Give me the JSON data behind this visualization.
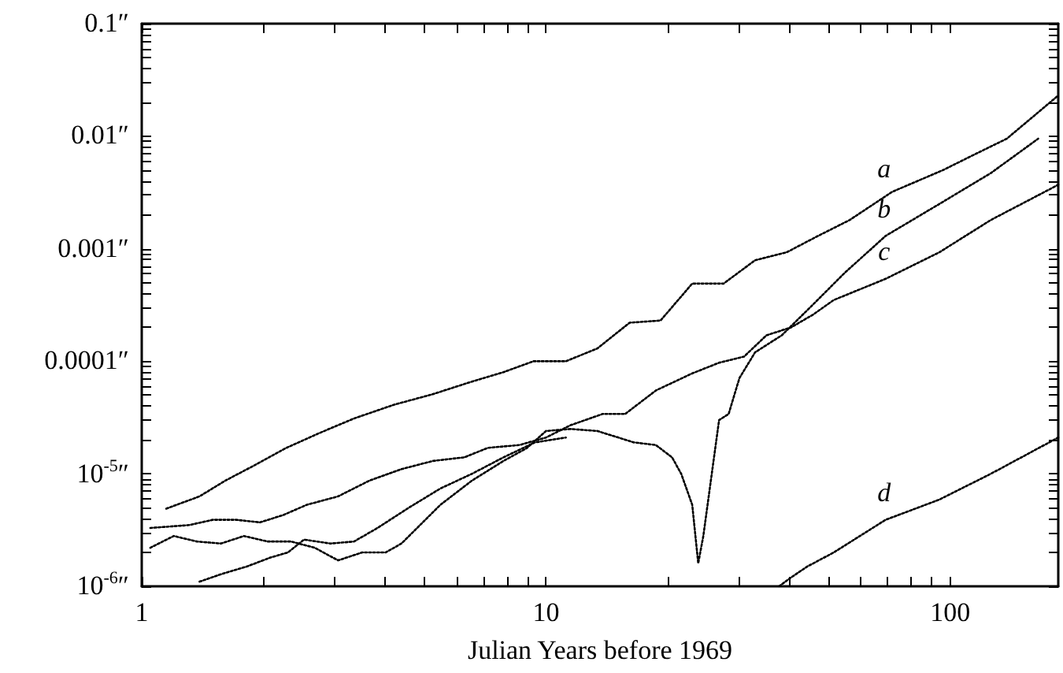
{
  "chart_data": {
    "type": "line",
    "xlabel": "Julian Years before 1969",
    "log": "xy",
    "grid": false,
    "marker": "none",
    "line_style": "dotted",
    "xlim": [
      1,
      185
    ],
    "xticks": [
      1,
      {
        "value": 2,
        "label": null
      },
      {
        "value": 3,
        "label": null
      },
      {
        "value": 4,
        "label": null
      },
      {
        "value": 5,
        "label": null
      },
      {
        "value": 6,
        "label": null
      },
      {
        "value": 7,
        "label": null
      },
      {
        "value": 8,
        "label": null
      },
      {
        "value": 9,
        "label": null
      },
      10,
      {
        "value": 20,
        "label": null
      },
      {
        "value": 30,
        "label": null
      },
      {
        "value": 40,
        "label": null
      },
      {
        "value": 50,
        "label": null
      },
      {
        "value": 60,
        "label": null
      },
      {
        "value": 70,
        "label": null
      },
      {
        "value": 80,
        "label": null
      },
      {
        "value": 90,
        "label": null
      },
      100
    ],
    "ylim": [
      1e-06,
      0.1
    ],
    "yticks": [
      {
        "value": 1e-06,
        "label": "10$^{-6}$″"
      },
      {
        "value": 2e-06,
        "label": null
      },
      {
        "value": 3e-06,
        "label": null
      },
      {
        "value": 4e-06,
        "label": null
      },
      {
        "value": 5e-06,
        "label": null
      },
      {
        "value": 6e-06,
        "label": null
      },
      {
        "value": 7e-06,
        "label": null
      },
      {
        "value": 8e-06,
        "label": null
      },
      {
        "value": 9e-06,
        "label": null
      },
      {
        "value": 1e-05,
        "label": "10$^{-5}$″"
      },
      {
        "value": 2e-05,
        "label": null
      },
      {
        "value": 3e-05,
        "label": null
      },
      {
        "value": 4e-05,
        "label": null
      },
      {
        "value": 5e-05,
        "label": null
      },
      {
        "value": 6e-05,
        "label": null
      },
      {
        "value": 7e-05,
        "label": null
      },
      {
        "value": 8e-05,
        "label": null
      },
      {
        "value": 9e-05,
        "label": null
      },
      {
        "value": 0.0001,
        "label": "0.0001″"
      },
      {
        "value": 0.0002,
        "label": null
      },
      {
        "value": 0.0003,
        "label": null
      },
      {
        "value": 0.0004,
        "label": null
      },
      {
        "value": 0.0005,
        "label": null
      },
      {
        "value": 0.0006,
        "label": null
      },
      {
        "value": 0.0007,
        "label": null
      },
      {
        "value": 0.0008,
        "label": null
      },
      {
        "value": 0.0009,
        "label": null
      },
      {
        "value": 0.001,
        "label": "0.001″"
      },
      {
        "value": 0.002,
        "label": null
      },
      {
        "value": 0.003,
        "label": null
      },
      {
        "value": 0.004,
        "label": null
      },
      {
        "value": 0.005,
        "label": null
      },
      {
        "value": 0.006,
        "label": null
      },
      {
        "value": 0.007,
        "label": null
      },
      {
        "value": 0.008,
        "label": null
      },
      {
        "value": 0.009,
        "label": null
      },
      {
        "value": 0.01,
        "label": "0.01″"
      },
      {
        "value": 0.02,
        "label": null
      },
      {
        "value": 0.03,
        "label": null
      },
      {
        "value": 0.04,
        "label": null
      },
      {
        "value": 0.05,
        "label": null
      },
      {
        "value": 0.06,
        "label": null
      },
      {
        "value": 0.07,
        "label": null
      },
      {
        "value": 0.08,
        "label": null
      },
      {
        "value": 0.09,
        "label": null
      },
      {
        "value": 0.1,
        "label": "0.1″"
      }
    ],
    "series": [
      {
        "name": "a",
        "color": "#000000",
        "x": [
          1.15,
          1.39,
          1.61,
          1.91,
          2.28,
          2.75,
          3.35,
          4.2,
          5.25,
          6.56,
          7.85,
          9.31,
          11.2,
          13.4,
          16.1,
          19.2,
          23,
          27.5,
          32.9,
          39.4,
          47.1,
          56.4,
          71.8,
          96,
          115,
          138,
          185
        ],
        "values": [
          4.9e-06,
          6.3e-06,
          8.7e-06,
          1.2e-05,
          1.7e-05,
          2.3e-05,
          3.1e-05,
          4.1e-05,
          5.1e-05,
          6.6e-05,
          8e-05,
          0.0001,
          0.0001,
          0.00013,
          0.00022,
          0.00023,
          0.00049,
          0.00049,
          0.00079,
          0.00093,
          0.0013,
          0.0018,
          0.0032,
          0.005,
          0.0069,
          0.0095,
          0.023
        ]
      },
      {
        "name": "b",
        "color": "#000000",
        "x": [
          1.05,
          1.2,
          1.37,
          1.57,
          1.79,
          2.05,
          2.34,
          2.68,
          3.06,
          3.51,
          4.01,
          4.39,
          4.8,
          5.48,
          6.56,
          7.85,
          8.98,
          10,
          11.5,
          13.4,
          16.5,
          18.7,
          20.5,
          21.6,
          23,
          23.8,
          24.5,
          25.2,
          26.8,
          28.3,
          30.1,
          32.9,
          38.3,
          45.8,
          54.8,
          69.2,
          94,
          126,
          165
        ],
        "values": [
          2.2e-06,
          2.8e-06,
          2.5e-06,
          2.4e-06,
          2.8e-06,
          2.5e-06,
          2.5e-06,
          2.2e-06,
          1.7e-06,
          2e-06,
          2e-06,
          2.4e-06,
          3.3e-06,
          5.3e-06,
          8.7e-06,
          1.3e-05,
          1.7e-05,
          2.4e-05,
          2.5e-05,
          2.4e-05,
          1.9e-05,
          1.8e-05,
          1.4e-05,
          1e-05,
          5.3e-06,
          1.6e-06,
          2.8e-06,
          5.9e-06,
          3e-05,
          3.4e-05,
          7.1e-05,
          0.00012,
          0.00017,
          0.00032,
          0.00061,
          0.0013,
          0.0025,
          0.0047,
          0.0095
        ]
      },
      {
        "name": "c",
        "color": "#000000",
        "x": [
          1.05,
          1.31,
          1.5,
          1.71,
          1.96,
          2.24,
          2.56,
          3.06,
          3.66,
          4.39,
          5.25,
          6.28,
          7.18,
          8.59,
          10,
          11.5,
          13.8,
          15.7,
          18.7,
          23,
          26.8,
          30.9,
          35.1,
          40.4,
          45.8,
          51.5,
          69.2,
          94,
          126,
          185
        ],
        "values": [
          3.3e-06,
          3.5e-06,
          3.9e-06,
          3.9e-06,
          3.7e-06,
          4.3e-06,
          5.3e-06,
          6.3e-06,
          8.7e-06,
          1.1e-05,
          1.3e-05,
          1.4e-05,
          1.7e-05,
          1.8e-05,
          2.1e-05,
          2.7e-05,
          3.4e-05,
          3.4e-05,
          5.5e-05,
          7.8e-05,
          9.7e-05,
          0.00011,
          0.00017,
          0.0002,
          0.00026,
          0.00035,
          0.00054,
          0.00093,
          0.0018,
          0.0037
        ]
      },
      {
        "color": "#000000",
        "x": [
          1.39,
          1.59,
          1.82,
          2.08,
          2.3,
          2.52,
          2.93,
          3.35,
          3.83,
          4.58,
          5.48,
          6.56,
          7.85,
          9.39,
          11.2
        ],
        "values": [
          1.1e-06,
          1.3e-06,
          1.5e-06,
          1.8e-06,
          2e-06,
          2.6e-06,
          2.4e-06,
          2.5e-06,
          3.3e-06,
          5e-06,
          7.4e-06,
          1e-05,
          1.4e-05,
          1.9e-05,
          2.1e-05
        ]
      },
      {
        "name": "d",
        "color": "#000000",
        "x": [
          37.7,
          40.4,
          44.3,
          51.5,
          69.2,
          94,
          126,
          185
        ],
        "values": [
          1e-06,
          1.2e-06,
          1.5e-06,
          2e-06,
          3.9e-06,
          5.9e-06,
          1e-05,
          2.1e-05
        ]
      }
    ]
  }
}
